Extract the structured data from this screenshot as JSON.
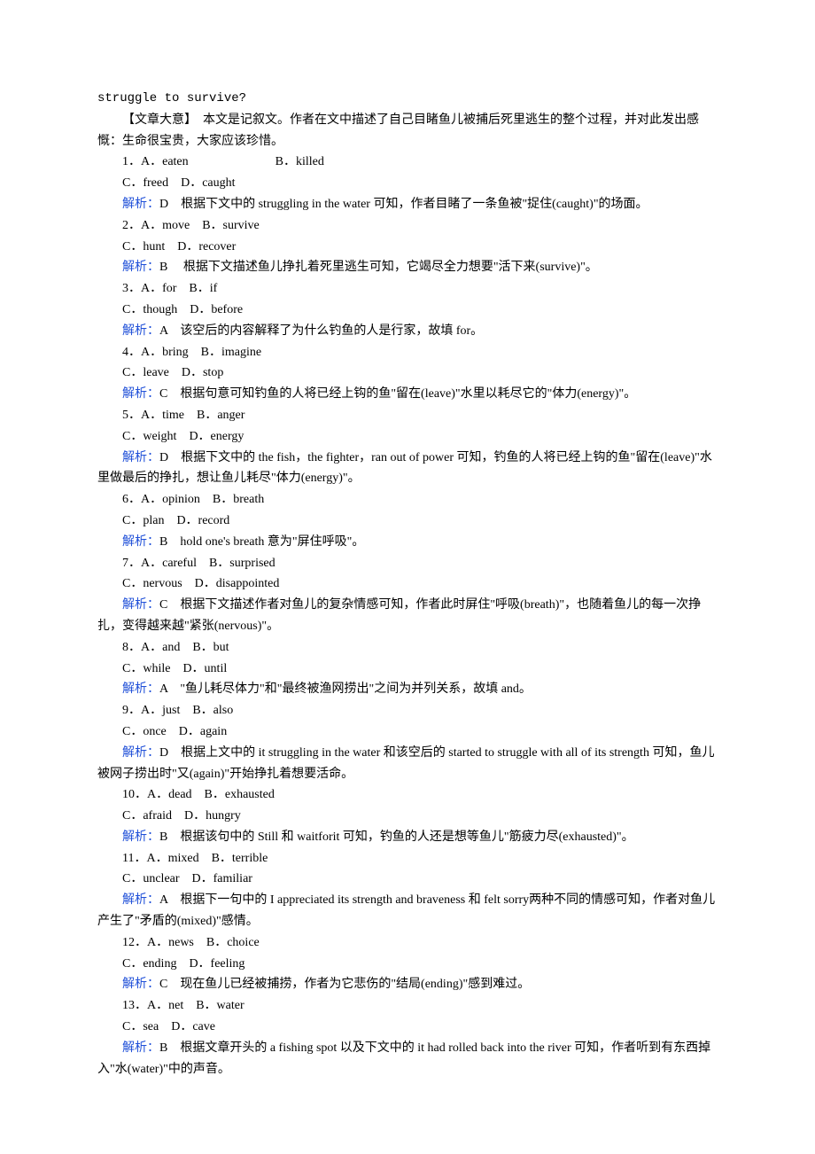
{
  "colors": {
    "text": "#000000",
    "analysis": "#2050d8",
    "background": "#ffffff"
  },
  "typography": {
    "body_font": "SimSun",
    "mono_font": "Courier New",
    "font_size_pt": 10.5,
    "line_height": 1.7
  },
  "header_line": "struggle to survive?",
  "summary": {
    "label": "【文章大意】",
    "text": "　本文是记叙文。作者在文中描述了自己目睹鱼儿被捕后死里逃生的整个过程，并对此发出感慨：生命很宝贵，大家应该珍惜。"
  },
  "analysis_label": "解析：",
  "questions": [
    {
      "num": "1．",
      "row1": "A．eaten　　　　　　　B．killed",
      "row2": "C．freed　D．caught",
      "ans": "D　根据下文中的 struggling in the water 可知，作者目睹了一条鱼被\"捉住(caught)\"的场面。"
    },
    {
      "num": "2．",
      "row1": "A．move　B．survive",
      "row2": "C．hunt　D．recover",
      "ans": "B　 根据下文描述鱼儿挣扎着死里逃生可知，它竭尽全力想要\"活下来(survive)\"。"
    },
    {
      "num": "3．",
      "row1": "A．for　B．if",
      "row2": "C．though　D．before",
      "ans": "A　该空后的内容解释了为什么钓鱼的人是行家，故填 for。"
    },
    {
      "num": "4．",
      "row1": "A．bring　B．imagine",
      "row2": "C．leave　D．stop",
      "ans": "C　根据句意可知钓鱼的人将已经上钩的鱼\"留在(leave)\"水里以耗尽它的\"体力(energy)\"。"
    },
    {
      "num": "5．",
      "row1": "A．time　B．anger",
      "row2": "C．weight　D．energy",
      "ans": "D　根据下文中的 the fish，the fighter，ran out of power 可知，钓鱼的人将已经上钩的鱼\"留在(leave)\"水里做最后的挣扎，想让鱼儿耗尽\"体力(energy)\"。"
    },
    {
      "num": "6．",
      "row1": "A．opinion　B．breath",
      "row2": "C．plan　D．record",
      "ans": "B　hold one's breath 意为\"屏住呼吸\"。"
    },
    {
      "num": "7．",
      "row1": "A．careful　B．surprised",
      "row2": "C．nervous　D．disappointed",
      "ans": "C　根据下文描述作者对鱼儿的复杂情感可知，作者此时屏住\"呼吸(breath)\"，也随着鱼儿的每一次挣扎，变得越来越\"紧张(nervous)\"。"
    },
    {
      "num": "8．",
      "row1": "A．and　B．but",
      "row2": "C．while　D．until",
      "ans": "A　\"鱼儿耗尽体力\"和\"最终被渔网捞出\"之间为并列关系，故填 and。"
    },
    {
      "num": "9．",
      "row1": "A．just　B．also",
      "row2": "C．once　D．again",
      "ans": "D　根据上文中的 it struggling in the water 和该空后的 started to struggle with all of its strength 可知，鱼儿被网子捞出时\"又(again)\"开始挣扎着想要活命。"
    },
    {
      "num": "10．",
      "row1": "A．dead　B．exhausted",
      "row2": "C．afraid　D．hungry",
      "ans": "B　根据该句中的 Still 和 waitforit 可知，钓鱼的人还是想等鱼儿\"筋疲力尽(exhausted)\"。"
    },
    {
      "num": "11．",
      "row1": "A．mixed　B．terrible",
      "row2": "C．unclear　D．familiar",
      "ans": "A　根据下一句中的 I appreciated its strength and braveness 和 felt sorry两种不同的情感可知，作者对鱼儿产生了\"矛盾的(mixed)\"感情。"
    },
    {
      "num": "12．",
      "row1": "A．news　B．choice",
      "row2": "C．ending　D．feeling",
      "ans": "C　现在鱼儿已经被捕捞，作者为它悲伤的\"结局(ending)\"感到难过。"
    },
    {
      "num": "13．",
      "row1": "A．net　B．water",
      "row2": "C．sea　D．cave",
      "ans": "B　根据文章开头的 a fishing spot 以及下文中的 it had rolled back into the river 可知，作者听到有东西掉入\"水(water)\"中的声音。"
    }
  ]
}
